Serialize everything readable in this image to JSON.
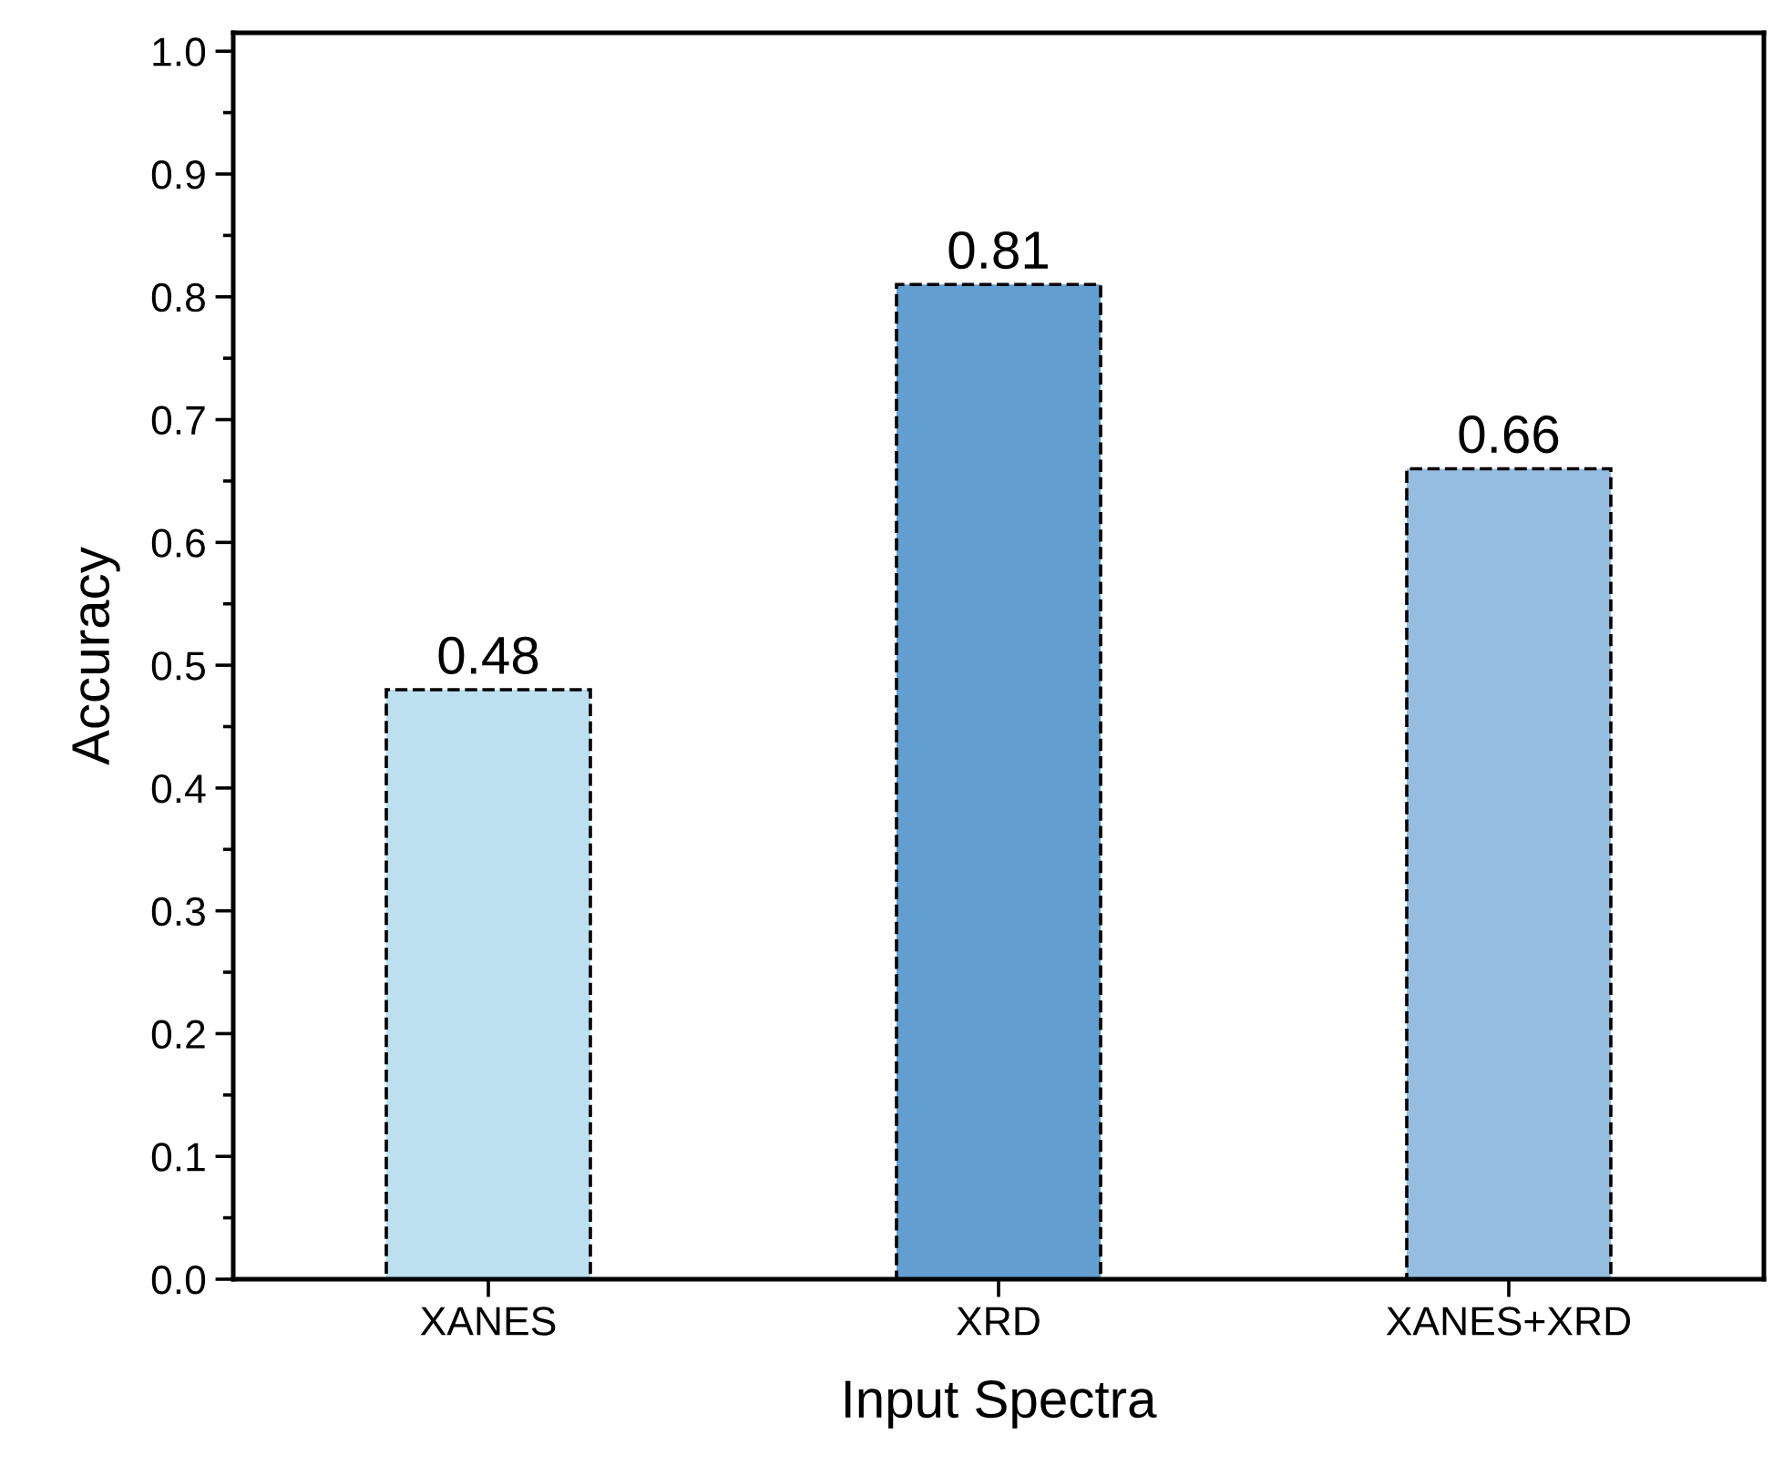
{
  "chart_data": {
    "type": "bar",
    "xlabel": "Input Spectra",
    "ylabel": "Accuracy",
    "categories": [
      "XANES",
      "XRD",
      "XANES+XRD"
    ],
    "values": [
      0.48,
      0.81,
      0.66
    ],
    "colors": [
      "#bde0f0",
      "#629fd0",
      "#95bddf"
    ],
    "ylim": [
      0,
      1.015
    ],
    "yticks": [
      {
        "value": 0,
        "label": "0.0"
      },
      0.1,
      0.2,
      0.3,
      0.4,
      0.5,
      0.6,
      0.7,
      0.8,
      0.9,
      {
        "value": 1,
        "label": "1.0"
      }
    ],
    "data_labels": true,
    "grid": false
  }
}
